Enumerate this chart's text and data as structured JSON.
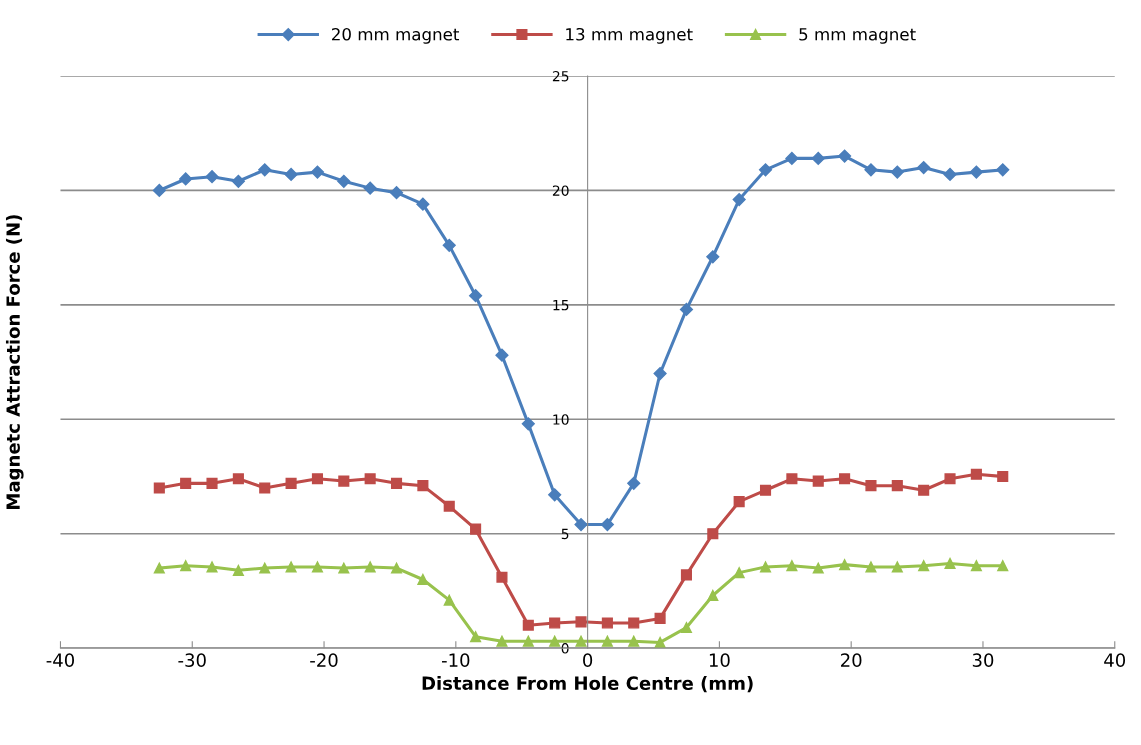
{
  "chart_data": {
    "type": "line",
    "xlabel": "Distance From Hole Centre (mm)",
    "ylabel": "Magnetc Attraction Force (N)",
    "x": [
      -32.5,
      -30.5,
      -28.5,
      -26.5,
      -24.5,
      -22.5,
      -20.5,
      -18.5,
      -16.5,
      -14.5,
      -12.5,
      -10.5,
      -8.5,
      -6.5,
      -4.5,
      -2.5,
      -0.5,
      1.5,
      3.5,
      5.5,
      7.5,
      9.5,
      11.5,
      13.5,
      15.5,
      17.5,
      19.5,
      21.5,
      23.5,
      25.5,
      27.5,
      29.5,
      31.5
    ],
    "series": [
      {
        "name": "20 mm magnet",
        "color": "#4a7ebb",
        "marker": "diamond",
        "values": [
          20.0,
          20.5,
          20.6,
          20.4,
          20.9,
          20.7,
          20.8,
          20.4,
          20.1,
          19.9,
          19.4,
          17.6,
          15.4,
          12.8,
          9.8,
          6.7,
          5.4,
          5.4,
          7.2,
          12.0,
          14.8,
          17.1,
          19.6,
          20.9,
          21.4,
          21.4,
          21.5,
          20.9,
          20.8,
          21.0,
          20.7,
          20.8,
          20.9
        ]
      },
      {
        "name": "13 mm magnet",
        "color": "#be4b48",
        "marker": "square",
        "values": [
          7.0,
          7.2,
          7.2,
          7.4,
          7.0,
          7.2,
          7.4,
          7.3,
          7.4,
          7.2,
          7.1,
          6.2,
          5.2,
          3.1,
          1.0,
          1.1,
          1.15,
          1.1,
          1.1,
          1.3,
          3.2,
          5.0,
          6.4,
          6.9,
          7.4,
          7.3,
          7.4,
          7.1,
          7.1,
          6.9,
          7.4,
          7.6,
          7.5
        ]
      },
      {
        "name": "5 mm magnet",
        "color": "#98c24d",
        "marker": "triangle",
        "values": [
          3.5,
          3.6,
          3.55,
          3.4,
          3.5,
          3.55,
          3.55,
          3.5,
          3.55,
          3.5,
          3.0,
          2.1,
          0.5,
          0.3,
          0.3,
          0.3,
          0.3,
          0.3,
          0.3,
          0.25,
          0.9,
          2.3,
          3.3,
          3.55,
          3.6,
          3.5,
          3.65,
          3.55,
          3.55,
          3.6,
          3.7,
          3.6,
          3.6
        ]
      }
    ],
    "xlim": [
      -40,
      40
    ],
    "xticks": [
      -40,
      -30,
      -20,
      -10,
      0,
      10,
      20,
      30,
      40
    ],
    "ylim": [
      0,
      25
    ],
    "yticks": [
      0,
      5,
      10,
      15,
      20,
      25
    ],
    "grid": "y",
    "legend": "top",
    "line_style": "solid"
  }
}
